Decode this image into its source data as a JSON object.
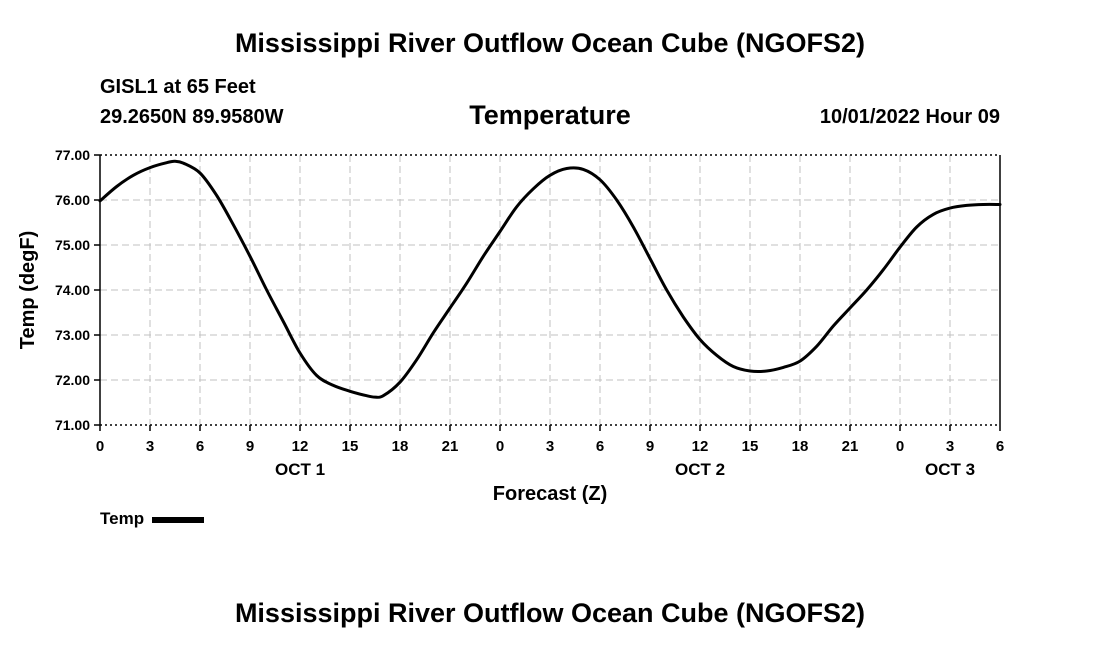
{
  "header": {
    "title": "Mississippi River Outflow Ocean Cube (NGOFS2)",
    "station_name": "GISL1 at 65 Feet",
    "station_coords": "29.2650N  89.9580W",
    "parameter": "Temperature",
    "run_time": "10/01/2022 Hour 09"
  },
  "footer": {
    "title": "Mississippi River Outflow Ocean Cube (NGOFS2)"
  },
  "chart_data": {
    "type": "line",
    "title": "Temperature",
    "xlabel": "Forecast (Z)",
    "ylabel": "Temp (degF)",
    "xlim": [
      0,
      54
    ],
    "ylim": [
      71.0,
      77.0
    ],
    "grid": true,
    "x_ticks": [
      0,
      3,
      6,
      9,
      12,
      15,
      18,
      21,
      24,
      27,
      30,
      33,
      36,
      39,
      42,
      45,
      48,
      51,
      54
    ],
    "x_tick_labels": [
      "0",
      "3",
      "6",
      "9",
      "12",
      "15",
      "18",
      "21",
      "0",
      "3",
      "6",
      "9",
      "12",
      "15",
      "18",
      "21",
      "0",
      "3",
      "6"
    ],
    "y_ticks": [
      71.0,
      72.0,
      73.0,
      74.0,
      75.0,
      76.0,
      77.0
    ],
    "y_tick_labels": [
      "71.00",
      "72.00",
      "73.00",
      "74.00",
      "75.00",
      "76.00",
      "77.00"
    ],
    "day_labels": [
      {
        "x": 12,
        "label": "OCT 1"
      },
      {
        "x": 36,
        "label": "OCT 2"
      },
      {
        "x": 51,
        "label": "OCT 3"
      }
    ],
    "legend": [
      {
        "name": "Temp",
        "color": "#000000"
      }
    ],
    "series": [
      {
        "name": "Temp",
        "color": "#000000",
        "x": [
          0,
          1,
          2,
          3,
          4,
          4.5,
          5,
          6,
          7,
          8,
          9,
          10,
          11,
          12,
          13,
          14,
          15,
          16,
          16.5,
          17,
          18,
          19,
          20,
          21,
          22,
          23,
          24,
          25,
          26,
          27,
          28,
          29,
          30,
          31,
          32,
          33,
          34,
          35,
          36,
          37,
          38,
          39,
          40,
          41,
          42,
          43,
          44,
          45,
          46,
          47,
          48,
          49,
          50,
          51,
          52,
          53,
          54
        ],
        "values": [
          75.98,
          76.3,
          76.55,
          76.72,
          76.83,
          76.86,
          76.82,
          76.6,
          76.1,
          75.45,
          74.75,
          74.0,
          73.3,
          72.6,
          72.1,
          71.88,
          71.75,
          71.65,
          71.62,
          71.65,
          71.95,
          72.45,
          73.05,
          73.6,
          74.15,
          74.75,
          75.3,
          75.85,
          76.25,
          76.55,
          76.7,
          76.68,
          76.45,
          76.0,
          75.4,
          74.7,
          74.0,
          73.4,
          72.9,
          72.55,
          72.3,
          72.2,
          72.2,
          72.28,
          72.42,
          72.75,
          73.2,
          73.6,
          74.0,
          74.45,
          74.95,
          75.4,
          75.68,
          75.82,
          75.88,
          75.9,
          75.9
        ]
      }
    ]
  }
}
